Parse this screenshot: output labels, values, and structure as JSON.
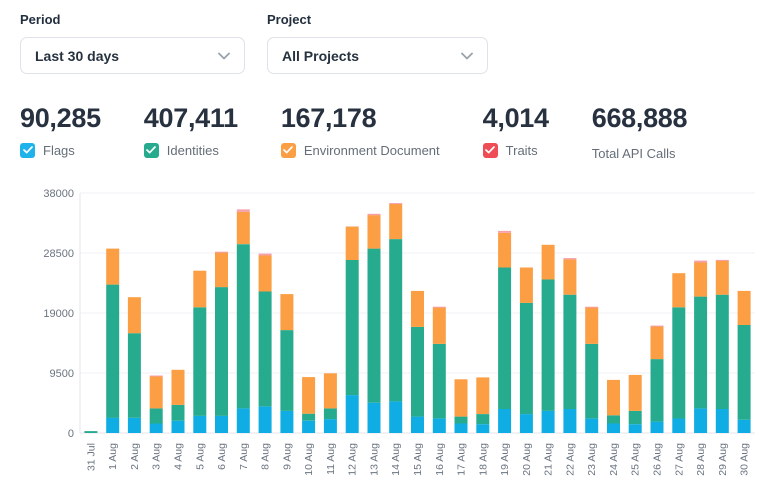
{
  "controls": {
    "period": {
      "label": "Period",
      "value": "Last 30 days"
    },
    "project": {
      "label": "Project",
      "value": "All Projects"
    }
  },
  "stats": [
    {
      "value": "90,285",
      "label": "Flags",
      "checkbox_color": "#1fb3ec"
    },
    {
      "value": "407,411",
      "label": "Identities",
      "checkbox_color": "#27ab8f"
    },
    {
      "value": "167,178",
      "label": "Environment Document",
      "checkbox_color": "#fb9e44"
    },
    {
      "value": "4,014",
      "label": "Traits",
      "checkbox_color": "#ef4d56"
    },
    {
      "value": "668,888",
      "label": "Total API Calls",
      "checkbox_color": null
    }
  ],
  "chart_data": {
    "type": "bar",
    "stacked": true,
    "title": "",
    "xlabel": "",
    "ylabel": "",
    "ylim": [
      0,
      38000
    ],
    "yticks": [
      0,
      9500,
      19000,
      28500,
      38000
    ],
    "grid": true,
    "legend_position": "none",
    "categories": [
      "31 Jul",
      "1 Aug",
      "2 Aug",
      "3 Aug",
      "4 Aug",
      "5 Aug",
      "6 Aug",
      "7 Aug",
      "8 Aug",
      "9 Aug",
      "10 Aug",
      "11 Aug",
      "12 Aug",
      "13 Aug",
      "14 Aug",
      "15 Aug",
      "16 Aug",
      "17 Aug",
      "18 Aug",
      "19 Aug",
      "20 Aug",
      "21 Aug",
      "22 Aug",
      "23 Aug",
      "24 Aug",
      "25 Aug",
      "26 Aug",
      "27 Aug",
      "28 Aug",
      "29 Aug",
      "30 Aug"
    ],
    "series": [
      {
        "name": "Flags",
        "color": "#10ade4",
        "values": [
          0,
          2400,
          2400,
          1500,
          1950,
          2700,
          2700,
          3900,
          4200,
          3500,
          1950,
          2200,
          6000,
          4800,
          5000,
          2600,
          2300,
          1500,
          1400,
          3800,
          3000,
          3500,
          3800,
          2300,
          1500,
          1400,
          1800,
          2300,
          3900,
          3800,
          2100
        ]
      },
      {
        "name": "Identities",
        "color": "#27ab8f",
        "values": [
          300,
          21100,
          13400,
          2400,
          2500,
          17200,
          20400,
          26000,
          18200,
          12800,
          1100,
          1700,
          21400,
          24400,
          25700,
          14200,
          11800,
          1100,
          1600,
          22400,
          17600,
          20800,
          18100,
          11800,
          1300,
          2100,
          9900,
          17600,
          17700,
          18100,
          15000
        ]
      },
      {
        "name": "Environment Document",
        "color": "#fb9e44",
        "values": [
          0,
          5700,
          5700,
          5100,
          5550,
          5800,
          5500,
          5100,
          5700,
          5700,
          5800,
          5550,
          5300,
          5300,
          5600,
          5700,
          5800,
          5900,
          5800,
          5500,
          5600,
          5500,
          5600,
          5800,
          5600,
          5700,
          5200,
          5400,
          5400,
          5400,
          5400
        ]
      },
      {
        "name": "Traits",
        "color": "#f6a0ac",
        "values": [
          0,
          0,
          0,
          100,
          0,
          0,
          100,
          400,
          300,
          0,
          0,
          0,
          0,
          200,
          100,
          0,
          100,
          0,
          0,
          300,
          0,
          0,
          200,
          100,
          0,
          0,
          100,
          0,
          300,
          100,
          0
        ]
      }
    ],
    "colors": {
      "gridline": "#f1f1f6",
      "axis_line": "#e4e6ec",
      "tick_text": "#6b7480"
    }
  }
}
